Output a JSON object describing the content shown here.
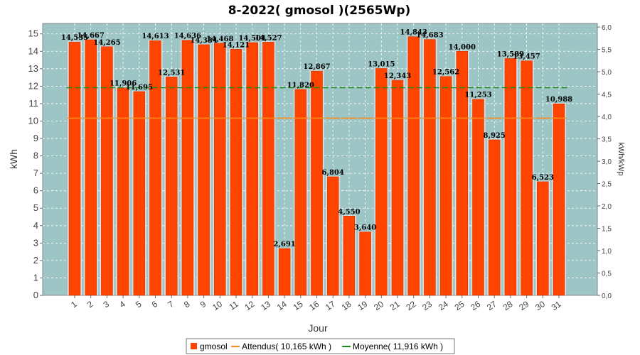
{
  "chart_data": {
    "type": "bar",
    "title": "8-2022( gmosol )(2565Wp)",
    "xlabel": "Jour",
    "ylabel": "kWh",
    "y2label": "kWh/kWp",
    "ylim": [
      0,
      15.6
    ],
    "y2lim": [
      0,
      6.08
    ],
    "yticks": [
      0,
      1,
      2,
      3,
      4,
      5,
      6,
      7,
      8,
      9,
      10,
      11,
      12,
      13,
      14,
      15
    ],
    "y2ticks": [
      "0,0",
      "0,5",
      "1,0",
      "1,5",
      "2,0",
      "2,5",
      "3,0",
      "3,5",
      "4,0",
      "4,5",
      "5,0",
      "5,5",
      "6,0"
    ],
    "grid": true,
    "legend_position": "bottom",
    "categories": [
      "1",
      "2",
      "3",
      "4",
      "5",
      "6",
      "7",
      "8",
      "9",
      "10",
      "11",
      "12",
      "13",
      "14",
      "15",
      "16",
      "17",
      "18",
      "19",
      "20",
      "21",
      "22",
      "23",
      "24",
      "25",
      "26",
      "27",
      "28",
      "29",
      "30",
      "31"
    ],
    "series": [
      {
        "name": "gmosol",
        "color": "#ff4400",
        "values": [
          14.535,
          14.667,
          14.265,
          11.906,
          11.695,
          14.613,
          12.531,
          14.636,
          14.384,
          14.468,
          14.121,
          14.504,
          14.527,
          2.691,
          11.82,
          12.867,
          6.804,
          4.55,
          3.64,
          13.015,
          12.343,
          14.843,
          14.683,
          12.562,
          14.0,
          11.253,
          8.925,
          13.589,
          13.457,
          6.523,
          10.988
        ],
        "labels": [
          "14,535",
          "14,667",
          "14,265",
          "11,906",
          "11,695",
          "14,613",
          "12,531",
          "14,636",
          "14,384",
          "14,468",
          "14,121",
          "14,504",
          "14,527",
          "2,691",
          "11,820",
          "12,867",
          "6,804",
          "4,550",
          "3,640",
          "13,015",
          "12,343",
          "14,843",
          "14,683",
          "12,562",
          "14,000",
          "11,253",
          "8,925",
          "13,589",
          "13,457",
          "6,523",
          "10,988"
        ]
      }
    ],
    "expected": {
      "name": "Attendus( 10,165 kWh )",
      "color": "#ff8c1a",
      "values": [
        10.165,
        10.165,
        10.165,
        10.165,
        10.165,
        10.165,
        10.165,
        10.165,
        10.165,
        10.165,
        10.165,
        10.165,
        10.165,
        10.165,
        10.165,
        10.165,
        10.165,
        10.165,
        10.165,
        10.165,
        10.165,
        10.165,
        10.165,
        10.165,
        10.165,
        10.165,
        10.165,
        10.165,
        10.165,
        10.165,
        10.165
      ]
    },
    "average": {
      "name": "Moyenne( 11,916 kWh )",
      "color": "#1a8c1a",
      "value": 11.916
    }
  },
  "colors": {
    "plot_background": "#9ec5c5",
    "bar_fill": "#ff4400",
    "bar_edge": "#c03000",
    "bar_shadow": "#e0e0e0"
  }
}
